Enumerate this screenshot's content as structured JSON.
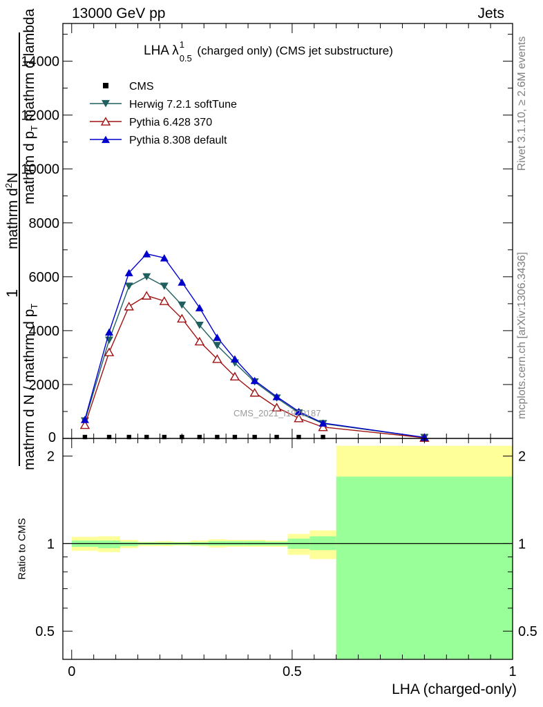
{
  "header": {
    "energy_label": "13000 GeV pp",
    "category_label": "Jets"
  },
  "side_labels": {
    "rivet": "Rivet 3.1.10, ≥ 2.6M events",
    "mcplots": "mcplots.cern.ch [arXiv:1306.3436]"
  },
  "watermark": "CMS_2021_I1920187",
  "chart_data": [
    {
      "type": "line",
      "title": "LHA λ¹₀.₅ (charged only) (CMS jet substructure)",
      "title_parts": {
        "prefix": "LHA λ",
        "sup": "1",
        "sub": "0.5",
        "suffix": " (charged only) (CMS jet substructure)"
      },
      "xlabel": "LHA (charged-only)",
      "ylabel_parts": {
        "one": "1",
        "numerator_over_sigma": "mathrm d N / mathrm d p",
        "p_sub": "T",
        "numerator_main": "mathrm d",
        "numerator_sup": "2",
        "numerator_N": "N",
        "denominator": "mathrm d p",
        "denominator_sub": "T",
        "denominator_tail": " mathrm d lambda"
      },
      "xlim": [
        -0.02,
        1.0
      ],
      "ylim": [
        0,
        15400
      ],
      "yticks": [
        {
          "value": 2000,
          "label": "2000"
        },
        {
          "value": 4000,
          "label": "4000"
        },
        {
          "value": 6000,
          "label": "6000"
        },
        {
          "value": 8000,
          "label": "8000"
        },
        {
          "value": 10000,
          "label": "10000"
        },
        {
          "value": 12000,
          "label": "12000"
        },
        {
          "value": 14000,
          "label": "14000"
        }
      ],
      "y_zero_label": "0",
      "legend_position": "top-left",
      "x": [
        0.03,
        0.085,
        0.13,
        0.17,
        0.21,
        0.25,
        0.29,
        0.33,
        0.37,
        0.415,
        0.465,
        0.515,
        0.57,
        0.8
      ],
      "series": [
        {
          "name": "CMS",
          "marker": "square",
          "color": "#000000",
          "values": [
            30,
            30,
            30,
            30,
            30,
            30,
            30,
            30,
            30,
            30,
            30,
            30,
            30,
            null
          ]
        },
        {
          "name": "Herwig 7.2.1 softTune",
          "marker": "triangle-down",
          "color": "#1f5f5f",
          "values": [
            650,
            3650,
            5650,
            6000,
            5650,
            4950,
            4200,
            3450,
            2800,
            2100,
            1500,
            950,
            550,
            35
          ]
        },
        {
          "name": "Pythia 6.428 370",
          "marker": "triangle-up-open",
          "color": "#a01010",
          "values": [
            500,
            3200,
            4900,
            5300,
            5100,
            4450,
            3600,
            2950,
            2300,
            1700,
            1150,
            750,
            420,
            25
          ]
        },
        {
          "name": "Pythia 8.308 default",
          "marker": "triangle-up",
          "color": "#0000cc",
          "values": [
            700,
            3950,
            6150,
            6850,
            6700,
            5800,
            4850,
            3750,
            2950,
            2150,
            1550,
            1000,
            570,
            40
          ]
        }
      ]
    },
    {
      "type": "area",
      "ylabel": "Ratio to CMS",
      "xlabel": "LHA (charged-only)",
      "scale": "log",
      "ylim": [
        0.4,
        2.3
      ],
      "yticks": [
        {
          "value": 0.5,
          "label": "0.5"
        },
        {
          "value": 1,
          "label": "1"
        },
        {
          "value": 2,
          "label": "2"
        }
      ],
      "xticks": [
        {
          "value": 0,
          "label": "0"
        },
        {
          "value": 0.5,
          "label": "0.5"
        },
        {
          "value": 1,
          "label": "1"
        }
      ],
      "colors": {
        "total_band": "#ffff99",
        "stat_band": "#99ff99",
        "reference_line": "#000000"
      },
      "bins": [
        {
          "lo": 0.0,
          "hi": 0.06,
          "total": [
            0.945,
            1.055
          ],
          "stat": [
            0.975,
            1.025
          ]
        },
        {
          "lo": 0.06,
          "hi": 0.11,
          "total": [
            0.935,
            1.06
          ],
          "stat": [
            0.965,
            1.025
          ]
        },
        {
          "lo": 0.11,
          "hi": 0.15,
          "total": [
            0.965,
            1.03
          ],
          "stat": [
            0.98,
            1.015
          ]
        },
        {
          "lo": 0.15,
          "hi": 0.19,
          "total": [
            0.98,
            1.015
          ],
          "stat": [
            0.99,
            1.01
          ]
        },
        {
          "lo": 0.19,
          "hi": 0.23,
          "total": [
            0.98,
            1.02
          ],
          "stat": [
            0.99,
            1.01
          ]
        },
        {
          "lo": 0.23,
          "hi": 0.27,
          "total": [
            0.985,
            1.015
          ],
          "stat": [
            0.99,
            1.01
          ]
        },
        {
          "lo": 0.27,
          "hi": 0.31,
          "total": [
            0.98,
            1.025
          ],
          "stat": [
            0.988,
            1.012
          ]
        },
        {
          "lo": 0.31,
          "hi": 0.35,
          "total": [
            0.97,
            1.035
          ],
          "stat": [
            0.985,
            1.02
          ]
        },
        {
          "lo": 0.35,
          "hi": 0.39,
          "total": [
            0.975,
            1.03
          ],
          "stat": [
            0.985,
            1.02
          ]
        },
        {
          "lo": 0.39,
          "hi": 0.44,
          "total": [
            0.975,
            1.03
          ],
          "stat": [
            0.985,
            1.02
          ]
        },
        {
          "lo": 0.44,
          "hi": 0.49,
          "total": [
            0.975,
            1.025
          ],
          "stat": [
            0.985,
            1.015
          ]
        },
        {
          "lo": 0.49,
          "hi": 0.54,
          "total": [
            0.915,
            1.08
          ],
          "stat": [
            0.96,
            1.04
          ]
        },
        {
          "lo": 0.54,
          "hi": 0.6,
          "total": [
            0.885,
            1.11
          ],
          "stat": [
            0.95,
            1.06
          ]
        },
        {
          "lo": 0.6,
          "hi": 1.0,
          "total": [
            0.4,
            2.17
          ],
          "stat": [
            0.4,
            1.7
          ]
        }
      ]
    }
  ]
}
